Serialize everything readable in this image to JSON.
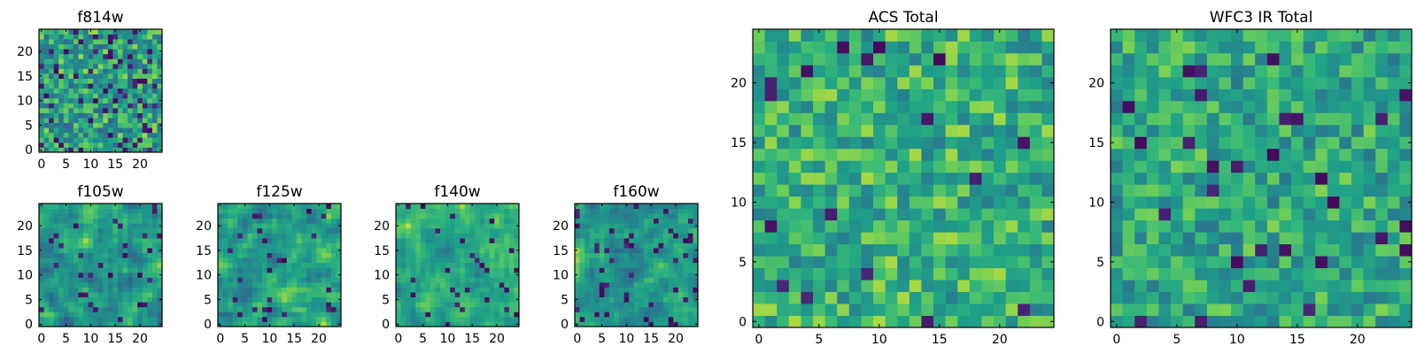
{
  "figure": {
    "title": ""
  },
  "chart_data": [
    {
      "type": "heatmap",
      "title": "f814w",
      "xticks": [
        "0",
        "5",
        "10",
        "15",
        "20"
      ],
      "yticks": [
        "0",
        "5",
        "10",
        "15",
        "20"
      ],
      "grid_size": 25,
      "xlim": [
        0,
        24
      ],
      "ylim": [
        0,
        24
      ],
      "seed": 11,
      "smooth": 0,
      "dark_fraction": 0.09,
      "range": [
        0.38,
        0.92
      ]
    },
    {
      "type": "heatmap",
      "title": "f105w",
      "xticks": [
        "0",
        "5",
        "10",
        "15",
        "20"
      ],
      "yticks": [
        "0",
        "5",
        "10",
        "15",
        "20"
      ],
      "grid_size": 25,
      "xlim": [
        0,
        24
      ],
      "ylim": [
        0,
        24
      ],
      "seed": 23,
      "smooth": 1,
      "dark_fraction": 0.05,
      "range": [
        0.35,
        0.93
      ]
    },
    {
      "type": "heatmap",
      "title": "f125w",
      "xticks": [
        "0",
        "5",
        "10",
        "15",
        "20"
      ],
      "yticks": [
        "0",
        "5",
        "10",
        "15",
        "20"
      ],
      "grid_size": 25,
      "xlim": [
        0,
        24
      ],
      "ylim": [
        0,
        24
      ],
      "seed": 37,
      "smooth": 1,
      "dark_fraction": 0.04,
      "range": [
        0.38,
        0.93
      ]
    },
    {
      "type": "heatmap",
      "title": "f140w",
      "xticks": [
        "0",
        "5",
        "10",
        "15",
        "20"
      ],
      "yticks": [
        "0",
        "5",
        "10",
        "15",
        "20"
      ],
      "grid_size": 25,
      "xlim": [
        0,
        24
      ],
      "ylim": [
        0,
        24
      ],
      "seed": 41,
      "smooth": 1,
      "dark_fraction": 0.04,
      "range": [
        0.45,
        0.95
      ]
    },
    {
      "type": "heatmap",
      "title": "f160w",
      "xticks": [
        "0",
        "5",
        "10",
        "15",
        "20"
      ],
      "yticks": [
        "0",
        "5",
        "10",
        "15",
        "20"
      ],
      "grid_size": 25,
      "xlim": [
        0,
        24
      ],
      "ylim": [
        0,
        24
      ],
      "seed": 53,
      "smooth": 1,
      "dark_fraction": 0.06,
      "range": [
        0.38,
        0.93
      ]
    },
    {
      "type": "heatmap",
      "title": "ACS Total",
      "xticks": [
        "0",
        "5",
        "10",
        "15",
        "20"
      ],
      "yticks": [
        "0",
        "5",
        "10",
        "15",
        "20"
      ],
      "grid_size": 25,
      "xlim": [
        0,
        24
      ],
      "ylim": [
        0,
        24
      ],
      "seed": 67,
      "smooth": 0,
      "dark_fraction": 0.03,
      "range": [
        0.48,
        0.93
      ]
    },
    {
      "type": "heatmap",
      "title": "WFC3 IR Total",
      "xticks": [
        "0",
        "5",
        "10",
        "15",
        "20"
      ],
      "yticks": [
        "0",
        "5",
        "10",
        "15",
        "20"
      ],
      "grid_size": 25,
      "xlim": [
        0,
        24
      ],
      "ylim": [
        0,
        24
      ],
      "seed": 79,
      "smooth": 0,
      "dark_fraction": 0.045,
      "range": [
        0.45,
        0.9
      ]
    }
  ]
}
